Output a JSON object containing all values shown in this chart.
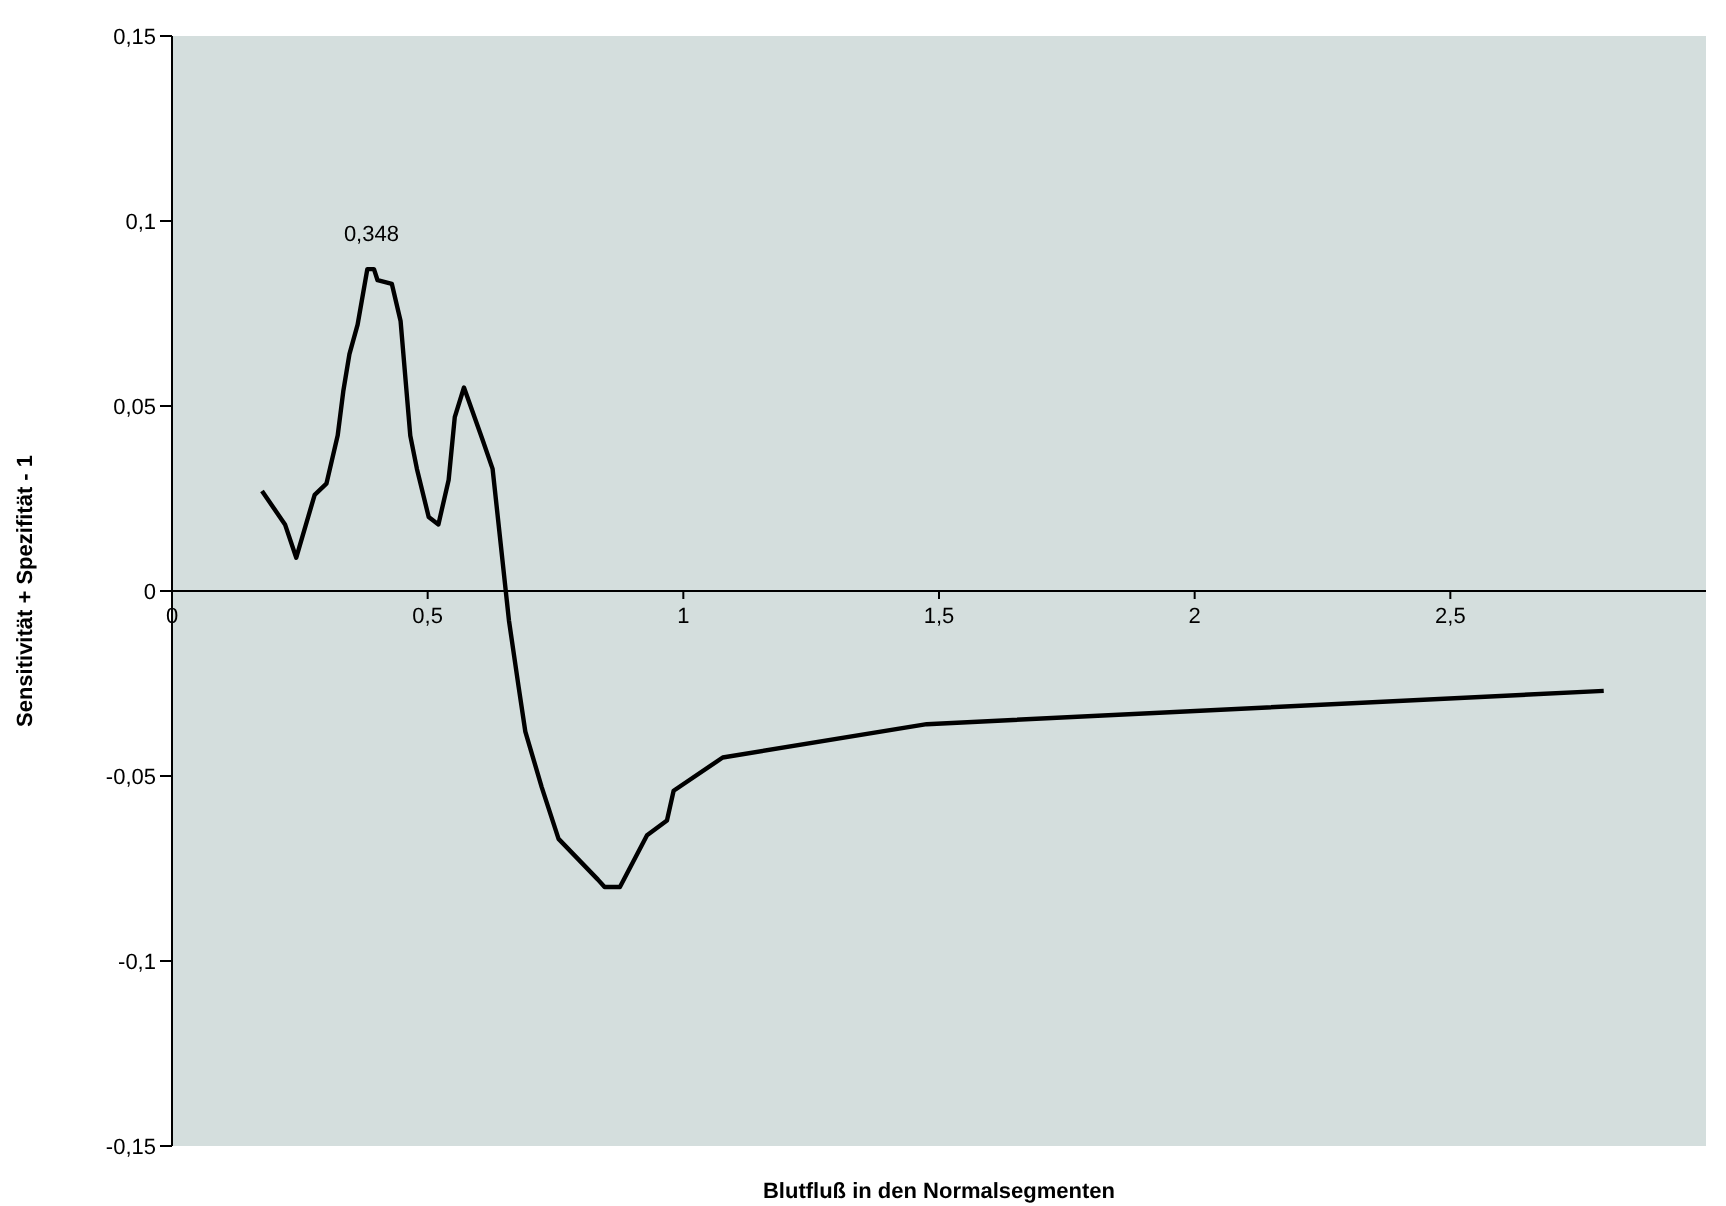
{
  "chart_data": {
    "type": "line",
    "xlabel": "Blutfluß in den Normalsegmenten",
    "ylabel": "Sensitivität + Spezifität - 1",
    "xlim": [
      0,
      3
    ],
    "xticks": [
      0,
      {
        "value": 0.5,
        "label": "0,5"
      },
      1,
      {
        "value": 1.5,
        "label": "1,5"
      },
      2,
      {
        "value": 2.5,
        "label": "2,5"
      }
    ],
    "ylim": [
      -0.15,
      0.15
    ],
    "yticks": [
      {
        "value": -0.15,
        "label": "-0,15"
      },
      {
        "value": -0.1,
        "label": "-0,1"
      },
      {
        "value": -0.05,
        "label": "-0,05"
      },
      0,
      {
        "value": 0.05,
        "label": "0,05"
      },
      {
        "value": 0.1,
        "label": "0,1"
      },
      {
        "value": 0.15,
        "label": "0,15"
      }
    ],
    "x": [
      0.176,
      0.221,
      0.243,
      0.279,
      0.302,
      0.324,
      0.335,
      0.347,
      0.363,
      0.382,
      0.395,
      0.402,
      0.43,
      0.447,
      0.466,
      0.479,
      0.502,
      0.521,
      0.541,
      0.553,
      0.571,
      0.607,
      0.627,
      0.659,
      0.678,
      0.691,
      0.723,
      0.756,
      0.833,
      0.846,
      0.876,
      0.929,
      0.968,
      0.981,
      1.077,
      1.476,
      2.8
    ],
    "series": [
      {
        "color": "#000000",
        "values": [
          0.027,
          0.018,
          0.009,
          0.026,
          0.029,
          0.042,
          0.054,
          0.064,
          0.072,
          0.087,
          0.087,
          0.084,
          0.083,
          0.073,
          0.042,
          0.033,
          0.02,
          0.018,
          0.03,
          0.047,
          0.055,
          0.041,
          0.033,
          -0.008,
          -0.026,
          -0.038,
          -0.053,
          -0.067,
          -0.078,
          -0.08,
          -0.08,
          -0.066,
          -0.062,
          -0.054,
          -0.045,
          -0.036,
          -0.027
        ]
      }
    ],
    "annotations": [
      {
        "text": "0,348",
        "x": 0.39,
        "y": 0.087
      }
    ]
  }
}
